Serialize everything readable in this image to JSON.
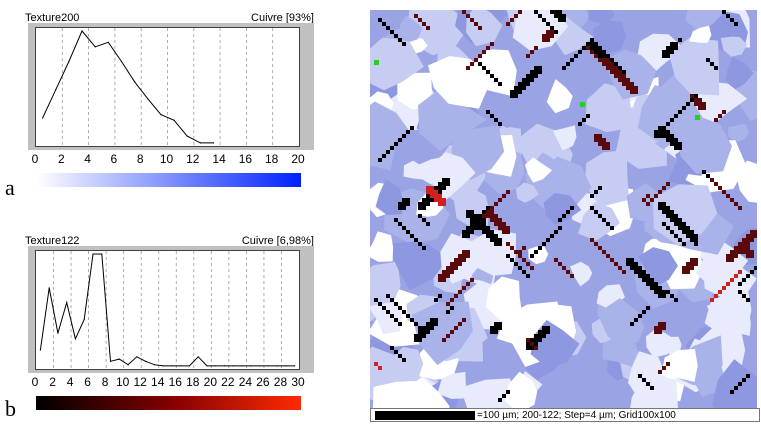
{
  "chart_data": [
    {
      "type": "line",
      "panel_letter": "a",
      "title": "Texture200",
      "subtitle": "Cuivre [93%]",
      "xlim": [
        0,
        20
      ],
      "ylim": [
        0,
        1
      ],
      "x_ticks": [
        "0",
        "2",
        "4",
        "6",
        "8",
        "10",
        "12",
        "14",
        "16",
        "18",
        "20"
      ],
      "grid": "vertical dashed",
      "colorbar": [
        "#ffffff",
        "#0022ff"
      ],
      "series": [
        {
          "x": [
            0.5,
            1.5,
            2.5,
            3.5,
            4.5,
            5.5,
            6.5,
            7.5,
            8.5,
            9.5,
            10.5,
            11.5,
            12.5,
            13.5
          ],
          "y": [
            0.23,
            0.48,
            0.73,
            1.0,
            0.86,
            0.9,
            0.73,
            0.55,
            0.4,
            0.26,
            0.21,
            0.07,
            0.01,
            0.01
          ]
        }
      ]
    },
    {
      "type": "line",
      "panel_letter": "b",
      "title": "Texture122",
      "subtitle": "Cuivre [6,98%]",
      "xlim": [
        0,
        30
      ],
      "ylim": [
        0,
        1
      ],
      "x_ticks": [
        "0",
        "2",
        "4",
        "6",
        "8",
        "10",
        "12",
        "14",
        "16",
        "18",
        "20",
        "22",
        "24",
        "26",
        "28",
        "30"
      ],
      "grid": "vertical dashed",
      "colorbar": [
        "#000000",
        "#800000",
        "#ff2a00"
      ],
      "series": [
        {
          "x": [
            0.5,
            1.5,
            2.5,
            3.5,
            4.5,
            5.5,
            6.5,
            7.5,
            8.5,
            9.5,
            10.5,
            11.5,
            12.5,
            13.5,
            14.5,
            15.5,
            16.5,
            17.5,
            18.5,
            19.5,
            20.5,
            21.5,
            22.5,
            23.5,
            24.5,
            25.5,
            26.5,
            27.5,
            28.5,
            29.5
          ],
          "y": [
            0.15,
            0.7,
            0.3,
            0.57,
            0.25,
            0.42,
            1.0,
            1.0,
            0.05,
            0.07,
            0.02,
            0.09,
            0.05,
            0.02,
            0.01,
            0.01,
            0.01,
            0.01,
            0.09,
            0.01,
            0.01,
            0.01,
            0.01,
            0.01,
            0.01,
            0.01,
            0.01,
            0.01,
            0.01,
            0.01
          ]
        }
      ]
    }
  ],
  "orientation_map": {
    "scale_label": "=100 µm; 200-122; Step=4 µm; Grid100x100",
    "background_color": "#9aa4e4",
    "grain_colors": [
      "#c6ccf2",
      "#8e98e0",
      "#e8ebfb",
      "#ffffff",
      "#aab2ea"
    ],
    "particle_colors": [
      "#000000",
      "#5a0a0a",
      "#d02020",
      "#22d022"
    ]
  }
}
